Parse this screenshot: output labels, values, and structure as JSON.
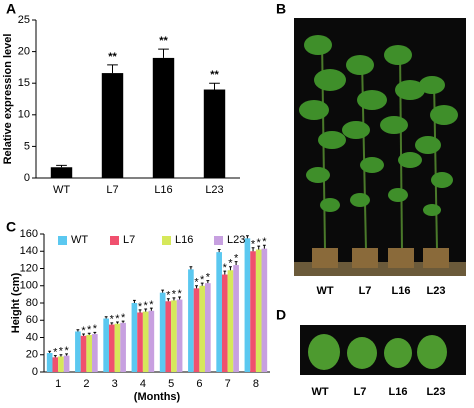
{
  "panels": [
    "A",
    "B",
    "C",
    "D"
  ],
  "photo_b_labels": [
    "WT",
    "L7",
    "L16",
    "L23"
  ],
  "photo_d_labels": [
    "WT",
    "L7",
    "L16",
    "L23"
  ],
  "chart_data": [
    {
      "type": "bar",
      "y_label": "Relative expression level",
      "categories": [
        "WT",
        "L7",
        "L16",
        "L23"
      ],
      "values": [
        1.7,
        16.6,
        19.0,
        14.0
      ],
      "errors": [
        0.3,
        1.3,
        1.4,
        1.0
      ],
      "annotations": [
        null,
        "**",
        "**",
        "**"
      ],
      "color": "#000000",
      "ylim": [
        0,
        25
      ],
      "yticks": [
        0,
        5,
        10,
        15,
        20,
        25
      ]
    },
    {
      "type": "bar",
      "y_label": "Height (cm)",
      "x_label": "(Months)",
      "categories": [
        "1",
        "2",
        "3",
        "4",
        "5",
        "6",
        "7",
        "8"
      ],
      "significance_mark": "*",
      "legend": "top",
      "series": [
        {
          "name": "WT",
          "color": "#5bc8f0",
          "values": [
            22,
            47,
            62,
            80,
            92,
            119,
            139,
            155
          ],
          "errors": [
            2,
            2,
            2,
            3,
            3,
            3,
            3,
            3
          ]
        },
        {
          "name": "L7",
          "color": "#f0506e",
          "values": [
            17,
            42,
            55,
            69,
            82,
            97,
            113,
            140
          ],
          "errors": [
            2,
            2,
            2,
            3,
            3,
            3,
            4,
            4
          ]
        },
        {
          "name": "L16",
          "color": "#d6e85a",
          "values": [
            18,
            43,
            56,
            70,
            83,
            100,
            118,
            142
          ],
          "errors": [
            2,
            2,
            2,
            3,
            3,
            3,
            4,
            4
          ]
        },
        {
          "name": "L23",
          "color": "#c7a0e0",
          "values": [
            19,
            44,
            57,
            71,
            84,
            103,
            124,
            143
          ],
          "errors": [
            2,
            2,
            2,
            3,
            3,
            3,
            4,
            4
          ]
        }
      ],
      "ylim": [
        0,
        160
      ],
      "yticks": [
        0,
        20,
        40,
        60,
        80,
        100,
        120,
        140,
        160
      ]
    }
  ]
}
